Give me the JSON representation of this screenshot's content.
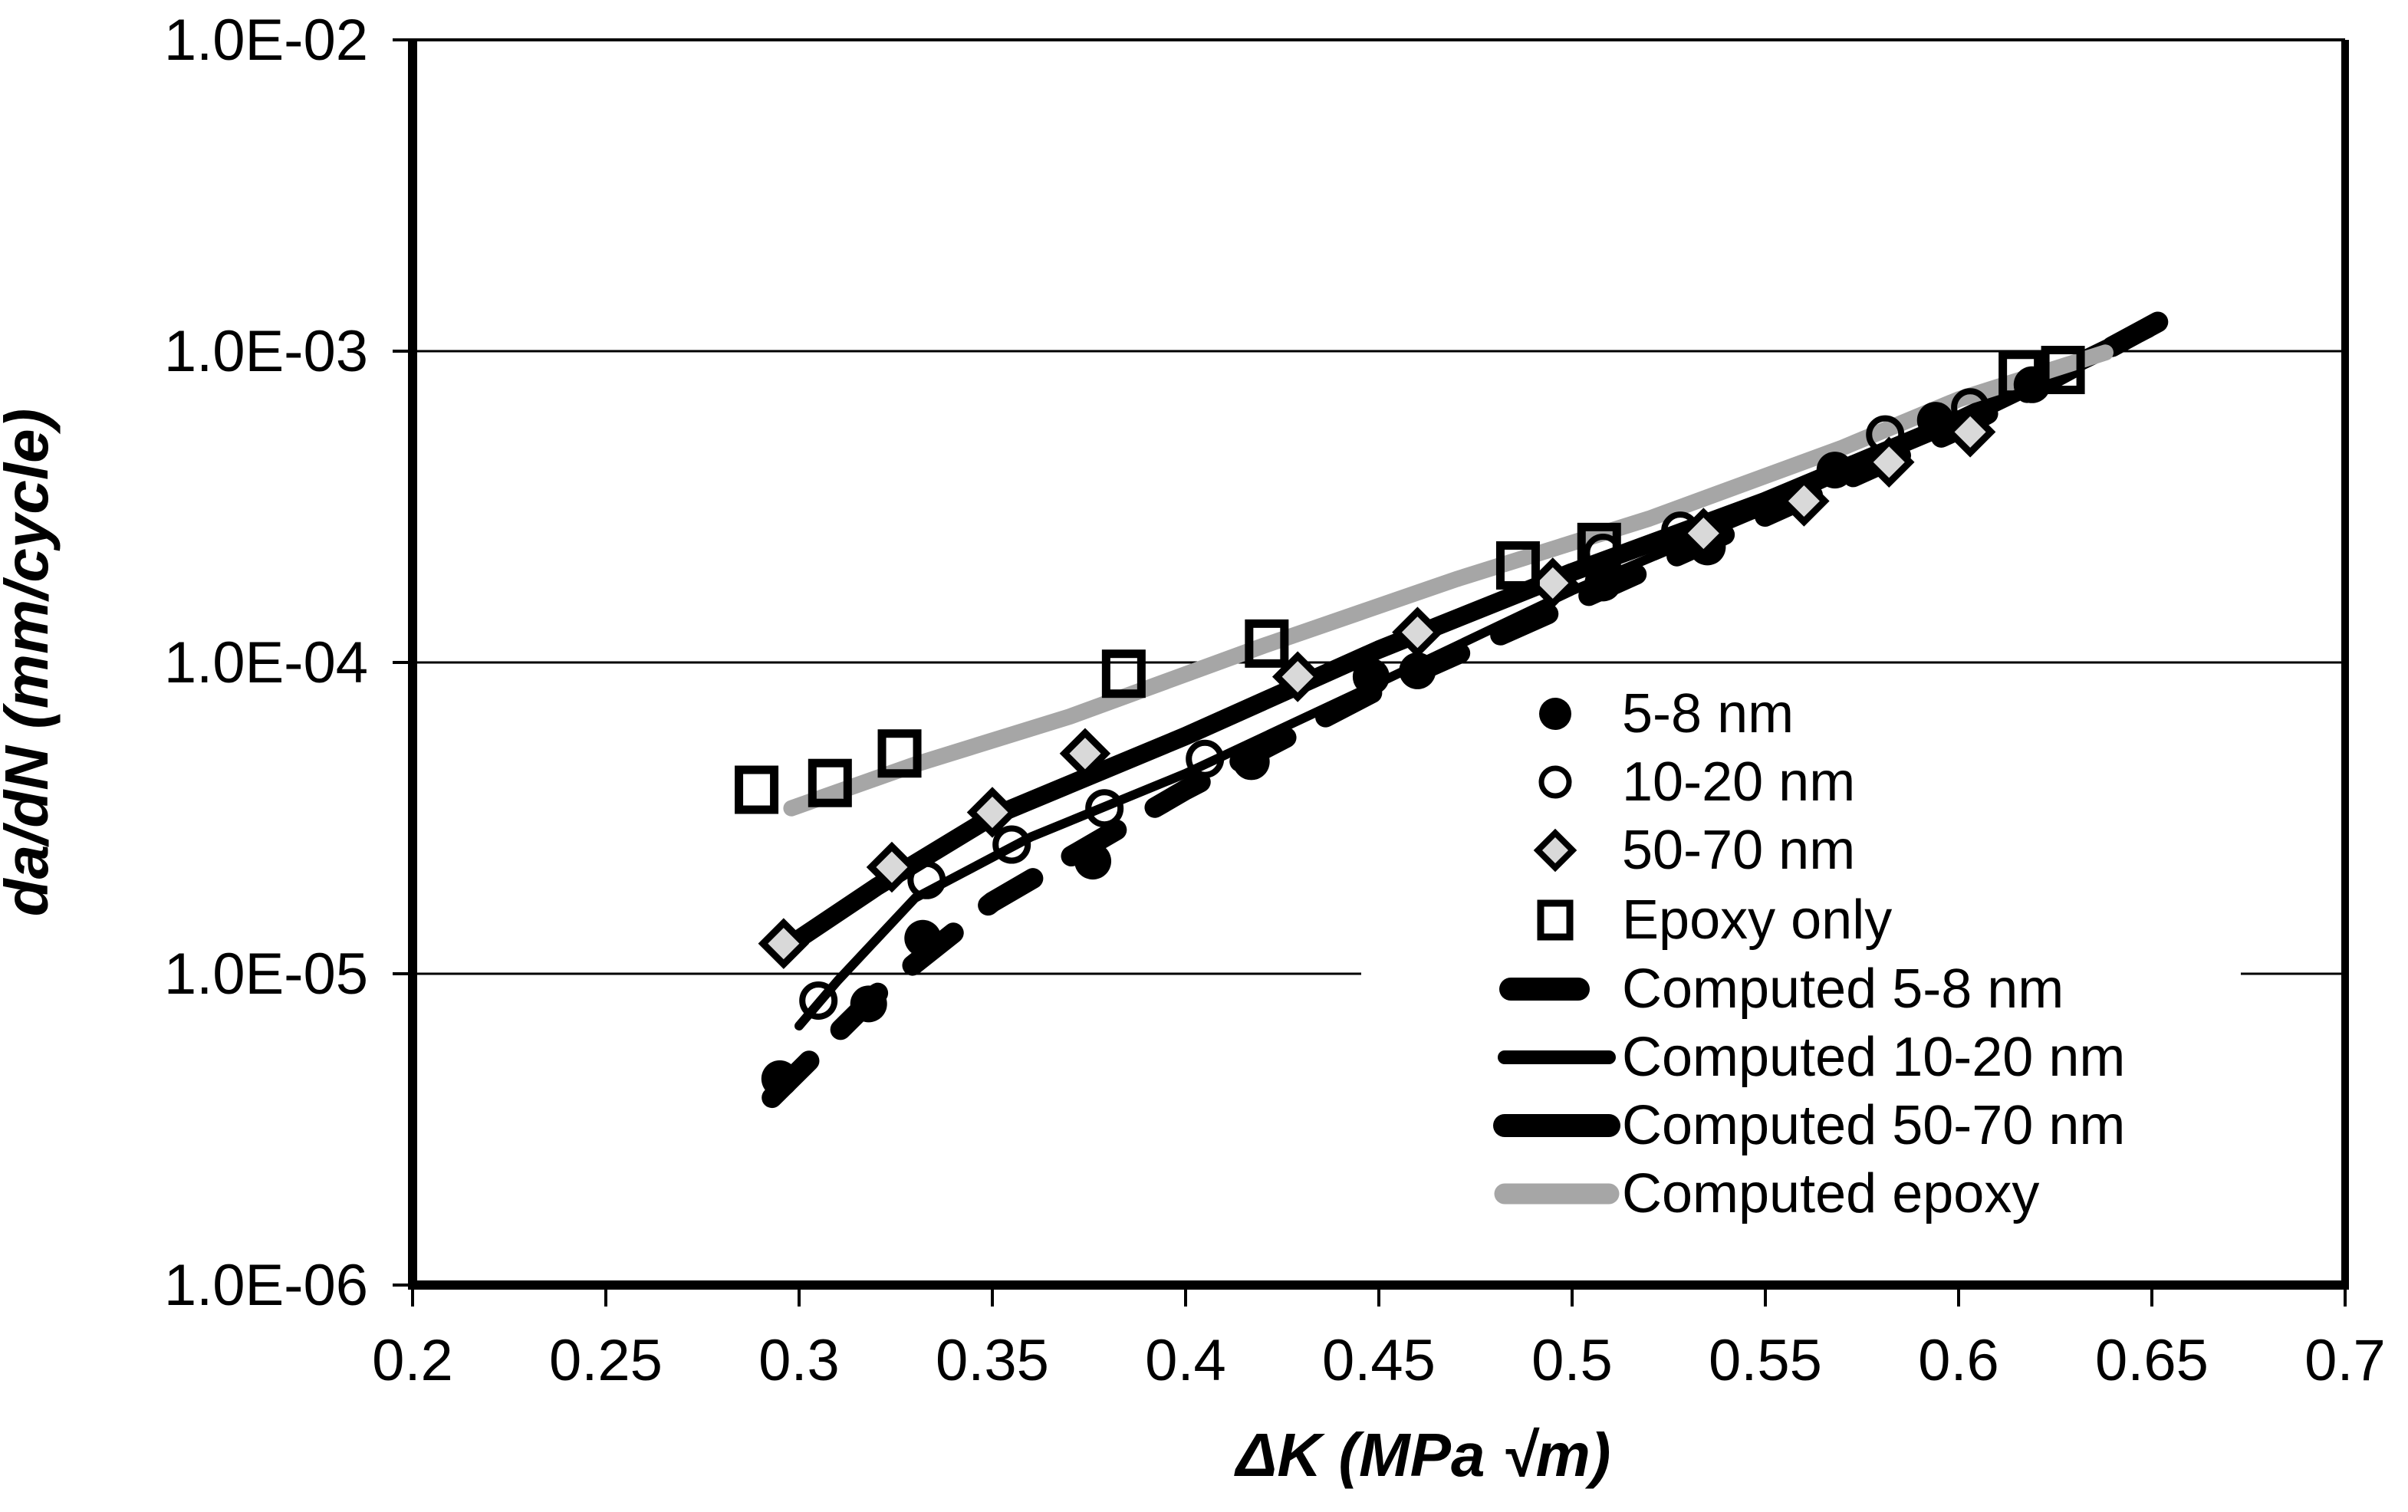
{
  "chart_data": {
    "type": "scatter",
    "title": "",
    "xlabel": "ΔK (MPa √m)",
    "ylabel": "da/dN (mm/cycle)",
    "xlim": [
      0.2,
      0.7
    ],
    "ylim": [
      1e-06,
      0.01
    ],
    "y_scale": "log",
    "x_ticks": [
      0.2,
      0.25,
      0.3,
      0.35,
      0.4,
      0.45,
      0.5,
      0.55,
      0.6,
      0.65,
      0.7
    ],
    "x_tick_labels": [
      "0.2",
      "0.25",
      "0.3",
      "0.35",
      "0.4",
      "0.45",
      "0.5",
      "0.55",
      "0.6",
      "0.65",
      "0.7"
    ],
    "y_ticks": [
      0.01,
      0.001,
      0.0001,
      1e-05,
      1e-06
    ],
    "y_tick_labels": [
      "1.0E-02",
      "1.0E-03",
      "1.0E-04",
      "1.0E-05",
      "1.0E-06"
    ],
    "grid": "horizontal-decades",
    "legend_position": "inside-right-middle",
    "colors": {
      "black": "#000000",
      "epoxy_gray": "#a6a6a6",
      "diamond_fill": "#d9d9d9",
      "background": "#ffffff"
    },
    "series": [
      {
        "name": "5-8 nm",
        "kind": "scatter",
        "marker": "filled-circle",
        "color": "#000000",
        "points": [
          [
            0.295,
            4.6e-06
          ],
          [
            0.318,
            8e-06
          ],
          [
            0.332,
            1.3e-05
          ],
          [
            0.376,
            2.3e-05
          ],
          [
            0.417,
            4.8e-05
          ],
          [
            0.448,
            9e-05
          ],
          [
            0.46,
            9.4e-05
          ],
          [
            0.508,
            0.00018
          ],
          [
            0.535,
            0.000235
          ],
          [
            0.568,
            0.000415
          ],
          [
            0.594,
            0.0006
          ],
          [
            0.619,
            0.00078
          ]
        ]
      },
      {
        "name": "10-20 nm",
        "kind": "scatter",
        "marker": "open-circle",
        "color": "#000000",
        "points": [
          [
            0.305,
            8.2e-06
          ],
          [
            0.333,
            2e-05
          ],
          [
            0.355,
            2.6e-05
          ],
          [
            0.379,
            3.4e-05
          ],
          [
            0.405,
            4.9e-05
          ],
          [
            0.508,
            0.000225
          ],
          [
            0.528,
            0.000265
          ],
          [
            0.581,
            0.00054
          ],
          [
            0.603,
            0.00066
          ]
        ]
      },
      {
        "name": "50-70 nm",
        "kind": "scatter",
        "marker": "diamond",
        "color": "#000000",
        "fill": "#d9d9d9",
        "points": [
          [
            0.296,
            1.25e-05
          ],
          [
            0.324,
            2.2e-05
          ],
          [
            0.35,
            3.3e-05
          ],
          [
            0.374,
            5.1e-05
          ],
          [
            0.429,
            9e-05
          ],
          [
            0.46,
            0.000125
          ],
          [
            0.495,
            0.00018
          ],
          [
            0.534,
            0.00026
          ],
          [
            0.56,
            0.00033
          ],
          [
            0.582,
            0.00044
          ],
          [
            0.603,
            0.00055
          ]
        ]
      },
      {
        "name": "Epoxy only",
        "kind": "scatter",
        "marker": "open-square",
        "color": "#000000",
        "points": [
          [
            0.289,
            3.9e-05
          ],
          [
            0.308,
            4.1e-05
          ],
          [
            0.326,
            5.1e-05
          ],
          [
            0.384,
            9.2e-05
          ],
          [
            0.421,
            0.000115
          ],
          [
            0.486,
            0.000205
          ],
          [
            0.507,
            0.000235
          ],
          [
            0.616,
            0.00084
          ],
          [
            0.627,
            0.00087
          ]
        ]
      },
      {
        "name": "Computed 5-8 nm",
        "kind": "line",
        "style": "dashed",
        "width": 27,
        "color": "#000000",
        "points": [
          [
            0.293,
            4e-06
          ],
          [
            0.32,
            8.6e-06
          ],
          [
            0.35,
            1.7e-05
          ],
          [
            0.4,
            3.9e-05
          ],
          [
            0.45,
            8.2e-05
          ],
          [
            0.5,
            0.000155
          ],
          [
            0.55,
            0.000295
          ],
          [
            0.6,
            0.00056
          ],
          [
            0.652,
            0.00125
          ]
        ]
      },
      {
        "name": "Computed 10-20 nm",
        "kind": "line",
        "style": "solid",
        "width": 12,
        "color": "#000000",
        "points": [
          [
            0.3,
            6.8e-06
          ],
          [
            0.31,
            9.5e-06
          ],
          [
            0.33,
            1.75e-05
          ],
          [
            0.36,
            2.75e-05
          ],
          [
            0.4,
            4.4e-05
          ],
          [
            0.45,
            8.6e-05
          ],
          [
            0.5,
            0.00017
          ],
          [
            0.55,
            0.00031
          ],
          [
            0.6,
            0.00059
          ],
          [
            0.648,
            0.00113
          ]
        ]
      },
      {
        "name": "Computed 50-70 nm",
        "kind": "line",
        "style": "solid",
        "width": 24,
        "color": "#000000",
        "points": [
          [
            0.296,
            1.2e-05
          ],
          [
            0.32,
            1.9e-05
          ],
          [
            0.35,
            3.2e-05
          ],
          [
            0.4,
            5.8e-05
          ],
          [
            0.45,
            0.00011
          ],
          [
            0.5,
            0.000195
          ],
          [
            0.55,
            0.00033
          ],
          [
            0.6,
            0.0006
          ],
          [
            0.649,
            0.00118
          ]
        ]
      },
      {
        "name": "Computed epoxy",
        "kind": "line",
        "style": "solid",
        "width": 21,
        "color": "#a6a6a6",
        "points": [
          [
            0.298,
            3.4e-05
          ],
          [
            0.33,
            4.7e-05
          ],
          [
            0.37,
            6.7e-05
          ],
          [
            0.42,
            0.000113
          ],
          [
            0.47,
            0.000185
          ],
          [
            0.52,
            0.00029
          ],
          [
            0.57,
            0.00049
          ],
          [
            0.6,
            0.0007
          ],
          [
            0.638,
            0.00099
          ]
        ]
      }
    ]
  }
}
